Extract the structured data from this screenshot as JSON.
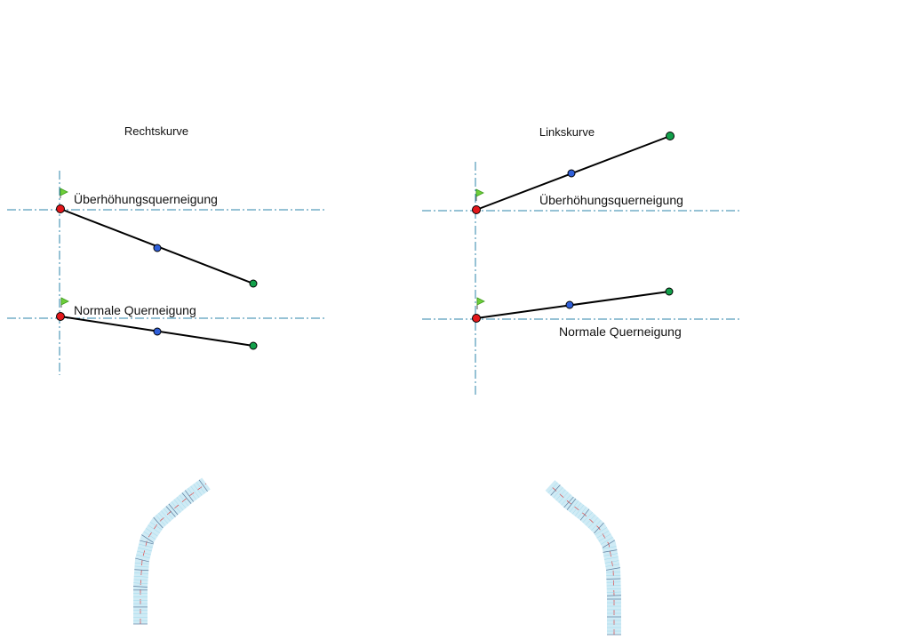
{
  "diagrams": {
    "right": {
      "title": "Rechtskurve",
      "upper_label": "Überhöhungsquerneigung",
      "lower_label": "Normale Querneigung"
    },
    "left": {
      "title": "Linkskurve",
      "upper_label": "Überhöhungsquerneigung",
      "lower_label": "Normale Querneigung"
    }
  },
  "colors": {
    "axis": "#2e86ab",
    "start_point": "#e3171b",
    "mid_point": "#2f5fd9",
    "end_point": "#12a04a",
    "flag": "#6fcf3a",
    "road_grid": "#9fd8ec",
    "road_centerline": "#e04040"
  },
  "icons": {
    "start_marker": "flag-icon",
    "point_start": "red-circle",
    "point_mid": "blue-circle",
    "point_end": "green-circle"
  }
}
